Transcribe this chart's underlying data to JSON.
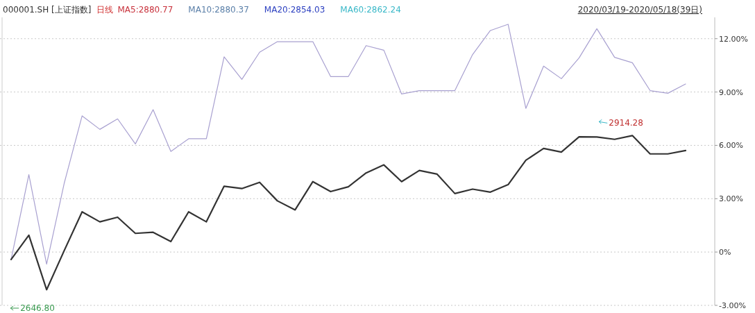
{
  "chart_data": {
    "type": "line",
    "title": "000001.SH [上证指数]",
    "annotations": [
      "日线",
      "MA5:2880.77",
      "MA10:2880.37",
      "MA20:2854.03",
      "MA60:2862.24",
      "2020/03/19-2020/05/18(39日)",
      "2914.28",
      "2646.80"
    ],
    "categories": [
      null,
      null,
      null,
      null,
      null,
      null,
      null,
      null,
      null,
      null,
      null,
      null,
      null,
      null,
      null,
      null,
      null,
      null,
      null,
      null,
      null,
      null,
      null,
      null,
      null,
      null,
      null,
      null,
      null,
      null,
      null,
      null,
      null,
      null,
      null,
      null,
      null,
      null,
      null
    ],
    "series": [
      {
        "color": "#333333",
        "values": [
          -0.42,
          0.95,
          -2.12,
          0.1,
          2.26,
          1.7,
          1.96,
          1.05,
          1.11,
          0.59,
          2.26,
          1.7,
          3.7,
          3.57,
          3.92,
          2.88,
          2.37,
          3.96,
          3.4,
          3.67,
          4.45,
          4.9,
          3.96,
          4.59,
          4.38,
          3.29,
          3.54,
          3.37,
          3.79,
          5.16,
          5.83,
          5.62,
          6.48,
          6.47,
          6.34,
          6.55,
          5.52,
          5.52,
          5.71
        ]
      },
      {
        "color": "#a8a0d0",
        "values": [
          -0.42,
          4.35,
          -0.68,
          3.9,
          7.66,
          6.9,
          7.49,
          6.08,
          8.01,
          5.66,
          6.37,
          6.37,
          10.98,
          9.71,
          11.24,
          11.83,
          11.83,
          11.83,
          9.87,
          9.87,
          11.61,
          11.35,
          8.89,
          9.08,
          9.08,
          9.08,
          11.11,
          12.46,
          12.81,
          8.08,
          10.46,
          9.75,
          10.92,
          12.56,
          10.95,
          10.65,
          9.08,
          8.93,
          9.45
        ]
      }
    ],
    "ylim": [
      -3,
      13.2
    ],
    "yticks": [
      {
        "value": -3,
        "label": "-3.00%"
      },
      {
        "value": 0,
        "label": "0%"
      },
      {
        "value": 3,
        "label": "3.00%"
      },
      {
        "value": 6,
        "label": "6.00%"
      },
      {
        "value": 9,
        "label": "9.00%"
      },
      {
        "value": 12,
        "label": "12.00%"
      }
    ],
    "grid": "y",
    "tick_labels": "y"
  }
}
